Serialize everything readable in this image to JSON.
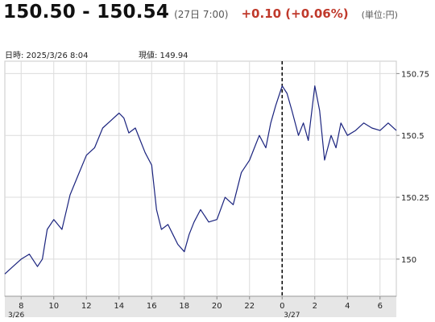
{
  "quote": {
    "bid_ask": "150.50 - 150.54",
    "time": "(27日 7:00)",
    "change": "+0.10  (+0.06%)",
    "unit": "(単位:円)"
  },
  "info": {
    "timestamp": "日時: 2025/3/26  8:04",
    "current": "現値: 149.94"
  },
  "colors": {
    "line": "#1a237e",
    "positive": "#c0392b",
    "axis_bg": "#e6e6e6",
    "divider": "#000000"
  },
  "chart_data": {
    "type": "line",
    "title": "",
    "xlabel": "",
    "ylabel": "",
    "x_unit": "hours since 3/26 07:00",
    "xlim": [
      0,
      24
    ],
    "ylim": [
      149.85,
      150.8
    ],
    "y_ticks": [
      {
        "value": 150,
        "label": "150"
      },
      {
        "value": 150.25,
        "label": "150.25"
      },
      {
        "value": 150.5,
        "label": "150.5"
      },
      {
        "value": 150.75,
        "label": "150.75"
      }
    ],
    "x_ticks": [
      {
        "x": 1,
        "label": "8"
      },
      {
        "x": 3,
        "label": "10"
      },
      {
        "x": 5,
        "label": "12"
      },
      {
        "x": 7,
        "label": "14"
      },
      {
        "x": 9,
        "label": "16"
      },
      {
        "x": 11,
        "label": "18"
      },
      {
        "x": 13,
        "label": "20"
      },
      {
        "x": 15,
        "label": "22"
      },
      {
        "x": 17,
        "label": "0"
      },
      {
        "x": 19,
        "label": "2"
      },
      {
        "x": 21,
        "label": "4"
      },
      {
        "x": 23,
        "label": "6"
      }
    ],
    "date_labels": [
      {
        "x": 0.1,
        "label": "3/26"
      },
      {
        "x": 17.0,
        "label": "3/27"
      }
    ],
    "day_divider_x": 17,
    "grid": true,
    "legend": "none",
    "series": [
      {
        "x": [
          0,
          0.5,
          1,
          1.5,
          2,
          2.3,
          2.6,
          3,
          3.5,
          4,
          4.5,
          5,
          5.5,
          6,
          6.5,
          7,
          7.3,
          7.6,
          8,
          8.3,
          8.6,
          9,
          9.3,
          9.6,
          10,
          10.3,
          10.6,
          11,
          11.3,
          11.6,
          12,
          12.5,
          13,
          13.5,
          14,
          14.5,
          15,
          15.3,
          15.6,
          16,
          16.3,
          16.6,
          17,
          17.3,
          17.6,
          18,
          18.3,
          18.6,
          19,
          19.3,
          19.6,
          20,
          20.3,
          20.6,
          21,
          21.5,
          22,
          22.5,
          23,
          23.5,
          24
        ],
        "y": [
          149.94,
          149.97,
          150.0,
          150.02,
          149.97,
          150.0,
          150.12,
          150.16,
          150.12,
          150.26,
          150.34,
          150.42,
          150.45,
          150.53,
          150.56,
          150.59,
          150.57,
          150.51,
          150.53,
          150.48,
          150.43,
          150.38,
          150.2,
          150.12,
          150.14,
          150.1,
          150.06,
          150.03,
          150.1,
          150.15,
          150.2,
          150.15,
          150.16,
          150.25,
          150.22,
          150.35,
          150.4,
          150.45,
          150.5,
          150.45,
          150.55,
          150.62,
          150.7,
          150.67,
          150.6,
          150.5,
          150.55,
          150.48,
          150.7,
          150.6,
          150.4,
          150.5,
          150.45,
          150.55,
          150.5,
          150.52,
          150.55,
          150.53,
          150.52,
          150.55,
          150.52
        ]
      }
    ]
  }
}
